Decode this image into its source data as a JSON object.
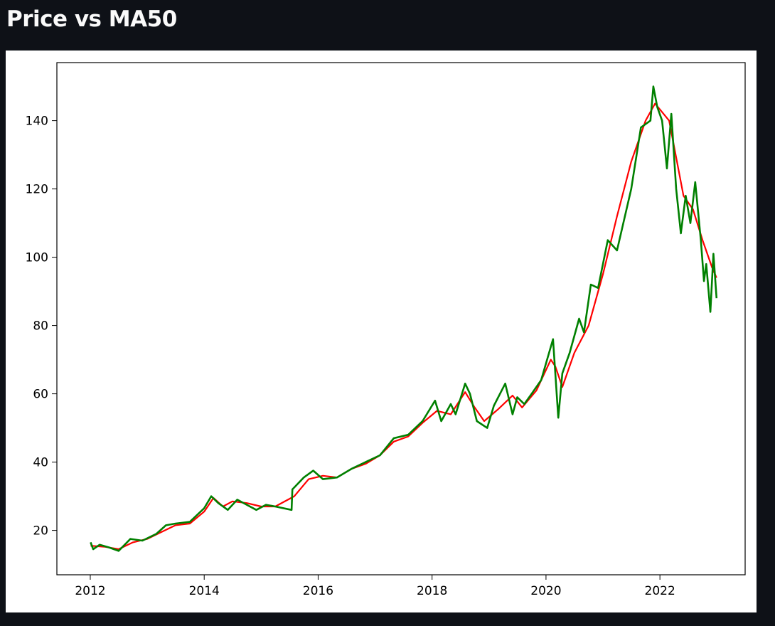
{
  "page": {
    "title": "Price vs MA50"
  },
  "chart_data": {
    "type": "line",
    "title": "",
    "xlabel": "",
    "ylabel": "",
    "x_ticks": [
      "2012",
      "2014",
      "2016",
      "2018",
      "2020",
      "2022"
    ],
    "y_ticks": [
      "20",
      "40",
      "60",
      "80",
      "100",
      "120",
      "140"
    ],
    "xlim": [
      "2011-06-01",
      "2023-07-01"
    ],
    "ylim": [
      7,
      157
    ],
    "grid": false,
    "legend": "none",
    "series": [
      {
        "color": "#ff0000",
        "x": [
          "2012-01-03",
          "2012-04-01",
          "2012-07-01",
          "2012-10-01",
          "2013-01-01",
          "2013-04-01",
          "2013-07-01",
          "2013-10-01",
          "2014-01-01",
          "2014-03-01",
          "2014-05-01",
          "2014-07-01",
          "2014-10-01",
          "2015-01-01",
          "2015-04-01",
          "2015-08-01",
          "2015-11-01",
          "2016-02-01",
          "2016-05-01",
          "2016-08-01",
          "2016-11-01",
          "2017-02-01",
          "2017-05-01",
          "2017-08-01",
          "2017-11-01",
          "2018-02-01",
          "2018-05-01",
          "2018-08-01",
          "2018-10-01",
          "2018-12-01",
          "2019-03-01",
          "2019-06-01",
          "2019-08-01",
          "2019-11-01",
          "2020-02-01",
          "2020-03-01",
          "2020-04-15",
          "2020-07-01",
          "2020-10-01",
          "2021-01-01",
          "2021-04-01",
          "2021-07-01",
          "2021-10-01",
          "2021-12-01",
          "2022-03-01",
          "2022-06-01",
          "2022-08-01",
          "2022-10-01",
          "2022-12-01",
          "2022-12-30"
        ],
        "y": [
          15.5,
          15.2,
          14.5,
          16.5,
          17.5,
          19.5,
          21.5,
          22.0,
          25.5,
          29.5,
          27.0,
          28.5,
          28.0,
          27.0,
          27.0,
          30.0,
          35.0,
          36.0,
          35.5,
          38.0,
          39.5,
          42.0,
          46.0,
          47.5,
          51.5,
          55.0,
          54.0,
          60.5,
          56.0,
          52.0,
          55.5,
          59.5,
          56.0,
          61.0,
          70.0,
          68.0,
          62.0,
          72.0,
          80.0,
          95.0,
          112.0,
          128.0,
          140.0,
          145.0,
          140.0,
          118.0,
          114.0,
          105.0,
          97.0,
          94.0
        ]
      },
      {
        "color": "#008000",
        "x": [
          "2012-01-03",
          "2012-01-20",
          "2012-03-01",
          "2012-05-01",
          "2012-07-01",
          "2012-09-15",
          "2012-12-01",
          "2013-03-01",
          "2013-05-01",
          "2013-07-01",
          "2013-10-01",
          "2014-01-01",
          "2014-02-15",
          "2014-04-01",
          "2014-06-01",
          "2014-08-01",
          "2014-10-01",
          "2014-12-01",
          "2015-02-01",
          "2015-04-01",
          "2015-07-15",
          "2015-07-20",
          "2015-10-01",
          "2015-12-01",
          "2016-02-01",
          "2016-05-01",
          "2016-08-01",
          "2016-11-01",
          "2017-02-01",
          "2017-05-01",
          "2017-08-01",
          "2017-11-01",
          "2018-01-20",
          "2018-03-01",
          "2018-05-01",
          "2018-06-01",
          "2018-08-01",
          "2018-09-01",
          "2018-10-15",
          "2018-12-20",
          "2019-02-01",
          "2019-04-15",
          "2019-06-01",
          "2019-07-01",
          "2019-08-15",
          "2019-10-01",
          "2019-12-01",
          "2020-02-15",
          "2020-03-20",
          "2020-04-15",
          "2020-06-01",
          "2020-08-01",
          "2020-09-01",
          "2020-10-15",
          "2020-12-01",
          "2021-02-01",
          "2021-04-01",
          "2021-07-01",
          "2021-09-01",
          "2021-11-01",
          "2021-11-20",
          "2021-12-15",
          "2022-01-15",
          "2022-02-15",
          "2022-03-15",
          "2022-04-15",
          "2022-05-15",
          "2022-06-15",
          "2022-07-15",
          "2022-08-15",
          "2022-09-20",
          "2022-10-10",
          "2022-10-25",
          "2022-11-20",
          "2022-12-10",
          "2022-12-30"
        ],
        "y": [
          16.5,
          14.5,
          15.8,
          15.0,
          14.0,
          17.5,
          17.0,
          19.0,
          21.5,
          22.0,
          22.5,
          26.5,
          30.0,
          28.0,
          26.0,
          29.0,
          27.5,
          26.0,
          27.5,
          27.0,
          26.0,
          32.0,
          35.5,
          37.5,
          35.0,
          35.5,
          38.0,
          40.0,
          42.0,
          47.0,
          48.0,
          52.0,
          58.0,
          52.0,
          57.0,
          54.0,
          63.0,
          60.0,
          52.0,
          50.0,
          56.5,
          63.0,
          54.0,
          59.0,
          57.0,
          60.0,
          64.0,
          76.0,
          53.0,
          66.0,
          72.0,
          82.0,
          78.0,
          92.0,
          91.0,
          105.0,
          102.0,
          120.0,
          138.0,
          140.0,
          150.0,
          144.0,
          140.0,
          126.0,
          142.0,
          120.0,
          107.0,
          118.0,
          110.0,
          122.0,
          105.0,
          93.0,
          98.0,
          84.0,
          101.0,
          88.0
        ]
      }
    ]
  }
}
